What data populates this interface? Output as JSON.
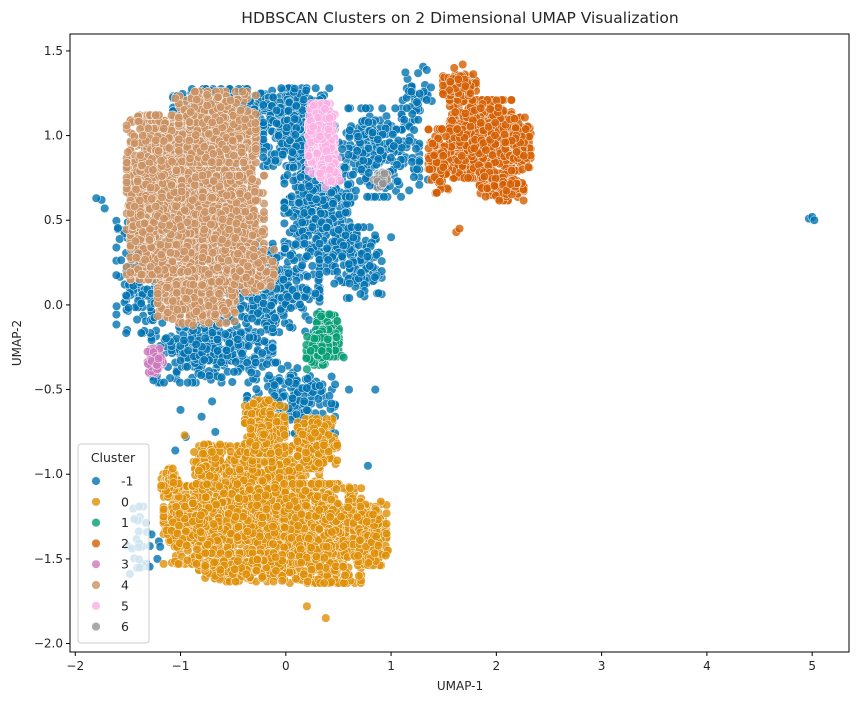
{
  "chart_data": {
    "type": "scatter",
    "title": "HDBSCAN Clusters on 2 Dimensional UMAP Visualization",
    "xlabel": "UMAP-1",
    "ylabel": "UMAP-2",
    "xlim": [
      -2.05,
      5.35
    ],
    "ylim": [
      -2.05,
      1.6
    ],
    "xticks": [
      -2,
      -1,
      0,
      1,
      2,
      3,
      4,
      5
    ],
    "yticks": [
      -2.0,
      -1.5,
      -1.0,
      -0.5,
      0.0,
      0.5,
      1.0,
      1.5
    ],
    "xtick_labels": [
      "−2",
      "−1",
      "0",
      "1",
      "2",
      "3",
      "4",
      "5"
    ],
    "ytick_labels": [
      "−2.0",
      "−1.5",
      "−1.0",
      "−0.5",
      "0.0",
      "0.5",
      "1.0",
      "1.5"
    ],
    "grid": false,
    "legend": {
      "title": "Cluster",
      "placement": "lower-left",
      "entries": [
        "-1",
        "0",
        "1",
        "2",
        "3",
        "4",
        "5",
        "6"
      ]
    },
    "series": [
      {
        "name": "-1",
        "color": "#0173b2",
        "regions": [
          {
            "center": [
              -0.6,
              1.15
            ],
            "spread": [
              0.45,
              0.12
            ],
            "count": 360
          },
          {
            "center": [
              0.1,
              1.05
            ],
            "spread": [
              0.3,
              0.22
            ],
            "count": 360
          },
          {
            "center": [
              0.3,
              0.55
            ],
            "spread": [
              0.3,
              0.25
            ],
            "count": 360
          },
          {
            "center": [
              0.85,
              0.9
            ],
            "spread": [
              0.4,
              0.25
            ],
            "count": 260
          },
          {
            "center": [
              -0.15,
              0.1
            ],
            "spread": [
              0.45,
              0.25
            ],
            "count": 320
          },
          {
            "center": [
              -0.7,
              -0.25
            ],
            "spread": [
              0.55,
              0.2
            ],
            "count": 300
          },
          {
            "center": [
              -1.4,
              0.2
            ],
            "spread": [
              0.2,
              0.35
            ],
            "count": 150
          },
          {
            "center": [
              0.05,
              -0.55
            ],
            "spread": [
              0.4,
              0.2
            ],
            "count": 160
          },
          {
            "center": [
              0.65,
              0.25
            ],
            "spread": [
              0.25,
              0.2
            ],
            "count": 150
          },
          {
            "center": [
              1.25,
              1.25
            ],
            "spread": [
              0.15,
              0.15
            ],
            "count": 40
          },
          {
            "center": [
              -1.35,
              -1.4
            ],
            "spread": [
              0.15,
              0.2
            ],
            "count": 30
          }
        ],
        "points": [
          [
            -1.75,
            0.62
          ],
          [
            -1.72,
            0.57
          ],
          [
            -1.8,
            0.63
          ],
          [
            -0.95,
            -0.78
          ],
          [
            -0.8,
            -0.66
          ],
          [
            -1.0,
            -0.62
          ],
          [
            -0.7,
            -0.57
          ],
          [
            -1.05,
            -0.86
          ],
          [
            -0.67,
            -0.75
          ],
          [
            0.78,
            -0.95
          ],
          [
            1.0,
            0.4
          ],
          [
            1.35,
            0.74
          ],
          [
            1.42,
            0.66
          ],
          [
            0.85,
            -0.5
          ],
          [
            -1.22,
            -1.5
          ],
          [
            0.6,
            -0.5
          ]
        ]
      },
      {
        "name": "0",
        "color": "#de8f05",
        "regions": [
          {
            "center": [
              -0.25,
              -1.2
            ],
            "spread": [
              0.55,
              0.35
            ],
            "count": 1300
          },
          {
            "center": [
              0.35,
              -1.35
            ],
            "spread": [
              0.35,
              0.28
            ],
            "count": 700
          },
          {
            "center": [
              -0.9,
              -1.3
            ],
            "spread": [
              0.25,
              0.22
            ],
            "count": 350
          },
          {
            "center": [
              -0.2,
              -0.72
            ],
            "spread": [
              0.18,
              0.15
            ],
            "count": 260
          },
          {
            "center": [
              0.3,
              -0.82
            ],
            "spread": [
              0.18,
              0.14
            ],
            "count": 220
          },
          {
            "center": [
              0.8,
              -1.35
            ],
            "spread": [
              0.15,
              0.18
            ],
            "count": 200
          },
          {
            "center": [
              -0.4,
              -1.55
            ],
            "spread": [
              0.35,
              0.08
            ],
            "count": 280
          },
          {
            "center": [
              -0.75,
              -0.95
            ],
            "spread": [
              0.12,
              0.12
            ],
            "count": 120
          },
          {
            "center": [
              -1.1,
              -1.05
            ],
            "spread": [
              0.08,
              0.08
            ],
            "count": 80
          }
        ],
        "points": [
          [
            0.38,
            -1.85
          ],
          [
            0.2,
            -1.78
          ],
          [
            -0.96,
            -0.77
          ],
          [
            0.97,
            -1.45
          ],
          [
            0.95,
            -1.48
          ]
        ]
      },
      {
        "name": "1",
        "color": "#029e73",
        "regions": [
          {
            "center": [
              0.4,
              -0.18
            ],
            "spread": [
              0.1,
              0.12
            ],
            "count": 160
          },
          {
            "center": [
              0.3,
              -0.25
            ],
            "spread": [
              0.1,
              0.1
            ],
            "count": 90
          }
        ],
        "points": [
          [
            0.53,
            -0.3
          ],
          [
            0.55,
            -0.31
          ],
          [
            0.2,
            -0.38
          ]
        ]
      },
      {
        "name": "2",
        "color": "#d55e00",
        "regions": [
          {
            "center": [
              1.85,
              0.98
            ],
            "spread": [
              0.28,
              0.22
            ],
            "count": 900
          },
          {
            "center": [
              1.65,
              1.3
            ],
            "spread": [
              0.15,
              0.06
            ],
            "count": 130
          },
          {
            "center": [
              2.05,
              0.7
            ],
            "spread": [
              0.2,
              0.08
            ],
            "count": 140
          },
          {
            "center": [
              2.2,
              0.95
            ],
            "spread": [
              0.12,
              0.15
            ],
            "count": 140
          },
          {
            "center": [
              1.45,
              0.85
            ],
            "spread": [
              0.09,
              0.18
            ],
            "count": 100
          }
        ],
        "points": [
          [
            1.62,
            0.43
          ],
          [
            1.65,
            0.45
          ],
          [
            1.68,
            1.42
          ],
          [
            1.6,
            1.4
          ]
        ]
      },
      {
        "name": "3",
        "color": "#cc78bc",
        "regions": [
          {
            "center": [
              -1.24,
              -0.33
            ],
            "spread": [
              0.07,
              0.07
            ],
            "count": 90
          }
        ],
        "points": []
      },
      {
        "name": "4",
        "color": "#ca9161",
        "regions": [
          {
            "center": [
              -0.9,
              0.62
            ],
            "spread": [
              0.55,
              0.45
            ],
            "count": 1900
          },
          {
            "center": [
              -1.25,
              0.65
            ],
            "spread": [
              0.25,
              0.45
            ],
            "count": 500
          },
          {
            "center": [
              -0.65,
              1.05
            ],
            "spread": [
              0.35,
              0.2
            ],
            "count": 500
          },
          {
            "center": [
              -0.85,
              0.05
            ],
            "spread": [
              0.35,
              0.15
            ],
            "count": 400
          },
          {
            "center": [
              -0.5,
              0.45
            ],
            "spread": [
              0.28,
              0.3
            ],
            "count": 380
          },
          {
            "center": [
              -0.3,
              0.2
            ],
            "spread": [
              0.18,
              0.12
            ],
            "count": 120
          }
        ],
        "points": [
          [
            -0.88,
            -0.12
          ],
          [
            -1.05,
            1.22
          ]
        ]
      },
      {
        "name": "5",
        "color": "#fbafe4",
        "regions": [
          {
            "center": [
              0.34,
              0.98
            ],
            "spread": [
              0.12,
              0.2
            ],
            "count": 320
          },
          {
            "center": [
              0.42,
              0.78
            ],
            "spread": [
              0.09,
              0.08
            ],
            "count": 80
          }
        ],
        "points": []
      },
      {
        "name": "6",
        "color": "#949494",
        "regions": [
          {
            "center": [
              0.9,
              0.74
            ],
            "spread": [
              0.06,
              0.05
            ],
            "count": 30
          }
        ],
        "points": []
      }
    ],
    "outliers": {
      "series": "-1",
      "points": [
        [
          4.97,
          0.51
        ],
        [
          5.0,
          0.52
        ],
        [
          5.02,
          0.5
        ]
      ]
    }
  }
}
